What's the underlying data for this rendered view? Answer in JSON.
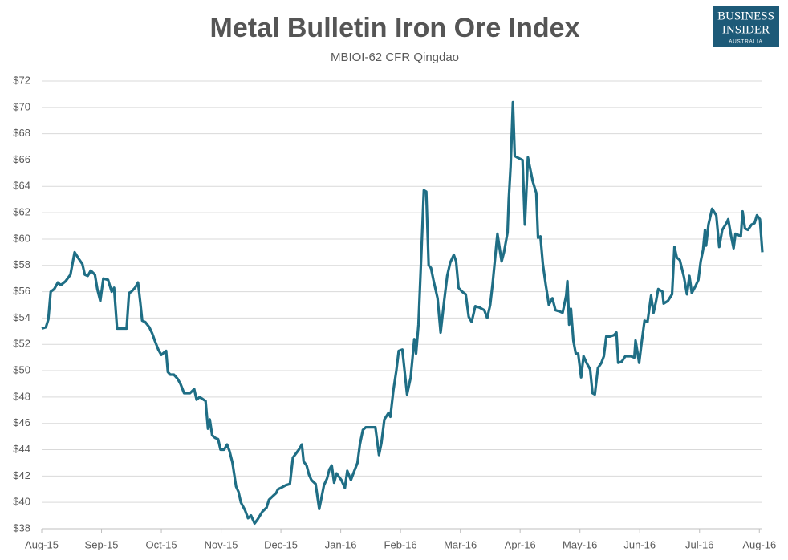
{
  "logo": {
    "line1": "BUSINESS",
    "line2": "INSIDER",
    "line3": "AUSTRALIA"
  },
  "chart_data": {
    "type": "line",
    "title": "Metal Bulletin Iron Ore Index",
    "subtitle": "MBIOI-62 CFR Qingdao",
    "color": "#1f6e85",
    "grid": true,
    "xlim": [
      0,
      12.05
    ],
    "ylim": [
      38,
      72
    ],
    "xticks": [
      {
        "value": 0,
        "label": "Aug-15"
      },
      {
        "value": 1,
        "label": "Sep-15"
      },
      {
        "value": 2,
        "label": "Oct-15"
      },
      {
        "value": 3,
        "label": "Nov-15"
      },
      {
        "value": 4,
        "label": "Dec-15"
      },
      {
        "value": 5,
        "label": "Jan-16"
      },
      {
        "value": 6,
        "label": "Feb-16"
      },
      {
        "value": 7,
        "label": "Mar-16"
      },
      {
        "value": 8,
        "label": "Apr-16"
      },
      {
        "value": 9,
        "label": "May-16"
      },
      {
        "value": 10,
        "label": "Jun-16"
      },
      {
        "value": 11,
        "label": "Jul-16"
      },
      {
        "value": 12,
        "label": "Aug-16"
      }
    ],
    "yticks": [
      {
        "value": 38,
        "label": "$38"
      },
      {
        "value": 40,
        "label": "$40"
      },
      {
        "value": 42,
        "label": "$42"
      },
      {
        "value": 44,
        "label": "$44"
      },
      {
        "value": 46,
        "label": "$46"
      },
      {
        "value": 48,
        "label": "$48"
      },
      {
        "value": 50,
        "label": "$50"
      },
      {
        "value": 52,
        "label": "$52"
      },
      {
        "value": 54,
        "label": "$54"
      },
      {
        "value": 56,
        "label": "$56"
      },
      {
        "value": 58,
        "label": "$58"
      },
      {
        "value": 60,
        "label": "$60"
      },
      {
        "value": 62,
        "label": "$62"
      },
      {
        "value": 64,
        "label": "$64"
      },
      {
        "value": 66,
        "label": "$66"
      },
      {
        "value": 68,
        "label": "$68"
      },
      {
        "value": 70,
        "label": "$70"
      },
      {
        "value": 72,
        "label": "$72"
      }
    ],
    "x": [
      0,
      0.07,
      0.11,
      0.15,
      0.21,
      0.27,
      0.32,
      0.4,
      0.48,
      0.55,
      0.62,
      0.68,
      0.72,
      0.77,
      0.82,
      0.89,
      0.93,
      0.98,
      1.03,
      1.11,
      1.17,
      1.21,
      1.26,
      1.32,
      1.42,
      1.46,
      1.5,
      1.56,
      1.61,
      1.65,
      1.68,
      1.73,
      1.8,
      1.85,
      1.89,
      1.95,
      2.0,
      2.08,
      2.11,
      2.15,
      2.21,
      2.27,
      2.32,
      2.38,
      2.48,
      2.55,
      2.59,
      2.64,
      2.74,
      2.78,
      2.81,
      2.85,
      2.9,
      2.95,
      2.99,
      3.05,
      3.1,
      3.14,
      3.19,
      3.25,
      3.29,
      3.33,
      3.4,
      3.45,
      3.5,
      3.56,
      3.61,
      3.69,
      3.76,
      3.8,
      3.87,
      3.92,
      3.95,
      4.0,
      4.08,
      4.15,
      4.2,
      4.3,
      4.35,
      4.38,
      4.43,
      4.47,
      4.51,
      4.58,
      4.64,
      4.68,
      4.72,
      4.77,
      4.81,
      4.85,
      4.89,
      4.93,
      5.01,
      5.07,
      5.11,
      5.17,
      5.22,
      5.28,
      5.32,
      5.37,
      5.42,
      5.48,
      5.58,
      5.64,
      5.68,
      5.73,
      5.8,
      5.83,
      5.88,
      5.93,
      5.97,
      6.03,
      6.11,
      6.17,
      6.23,
      6.26,
      6.3,
      6.34,
      6.39,
      6.43,
      6.47,
      6.51,
      6.55,
      6.62,
      6.67,
      6.73,
      6.78,
      6.83,
      6.89,
      6.93,
      6.97,
      7.03,
      7.09,
      7.14,
      7.19,
      7.25,
      7.32,
      7.4,
      7.45,
      7.5,
      7.54,
      7.62,
      7.69,
      7.73,
      7.79,
      7.81,
      7.84,
      7.88,
      7.91,
      7.95,
      8.04,
      8.08,
      8.13,
      8.21,
      8.27,
      8.3,
      8.34,
      8.38,
      8.43,
      8.48,
      8.54,
      8.59,
      8.66,
      8.71,
      8.77,
      8.79,
      8.82,
      8.85,
      8.89,
      8.93,
      8.97,
      9.02,
      9.06,
      9.11,
      9.17,
      9.21,
      9.25,
      9.3,
      9.36,
      9.4,
      9.44,
      9.5,
      9.57,
      9.61,
      9.64,
      9.7,
      9.76,
      9.85,
      9.91,
      9.93,
      9.99,
      10.03,
      10.08,
      10.13,
      10.19,
      10.23,
      10.27,
      10.31,
      10.38,
      10.4,
      10.47,
      10.54,
      10.58,
      10.62,
      10.67,
      10.74,
      10.79,
      10.83,
      10.87,
      10.93,
      10.98,
      11.02,
      11.06,
      11.09,
      11.11,
      11.15,
      11.21,
      11.28,
      11.33,
      11.38,
      11.45,
      11.48,
      11.53,
      11.57,
      11.6,
      11.65,
      11.69,
      11.72,
      11.76,
      11.81,
      11.87,
      11.92,
      11.96,
      12.01,
      12.05
    ],
    "values": [
      53.2,
      53.3,
      53.9,
      56.0,
      56.2,
      56.7,
      56.5,
      56.8,
      57.3,
      59.0,
      58.5,
      58.1,
      57.3,
      57.2,
      57.6,
      57.3,
      56.2,
      55.3,
      57.0,
      56.9,
      56.0,
      56.3,
      53.2,
      53.2,
      53.2,
      55.9,
      56.0,
      56.3,
      56.7,
      55.1,
      53.8,
      53.7,
      53.3,
      52.8,
      52.3,
      51.6,
      51.2,
      51.5,
      49.9,
      49.7,
      49.7,
      49.4,
      49.0,
      48.3,
      48.3,
      48.6,
      47.8,
      48.0,
      47.7,
      45.6,
      46.3,
      45.1,
      44.9,
      44.8,
      44.0,
      44.0,
      44.4,
      43.9,
      43.0,
      41.2,
      40.8,
      40.0,
      39.4,
      38.8,
      39.0,
      38.4,
      38.7,
      39.3,
      39.6,
      40.2,
      40.5,
      40.7,
      41.0,
      41.1,
      41.3,
      41.4,
      43.4,
      44.0,
      44.4,
      43.1,
      42.8,
      42.1,
      41.7,
      41.4,
      39.5,
      40.4,
      41.3,
      41.8,
      42.5,
      42.8,
      41.5,
      42.2,
      41.7,
      41.1,
      42.4,
      41.7,
      42.3,
      43.0,
      44.4,
      45.5,
      45.7,
      45.7,
      45.7,
      43.6,
      44.5,
      46.3,
      46.8,
      46.5,
      48.5,
      50.0,
      51.5,
      51.6,
      48.2,
      49.5,
      52.4,
      51.3,
      53.5,
      58.0,
      63.7,
      63.6,
      58.0,
      57.8,
      56.9,
      55.5,
      52.9,
      55.3,
      57.2,
      58.2,
      58.8,
      58.3,
      56.3,
      56.0,
      55.8,
      54.1,
      53.7,
      54.9,
      54.8,
      54.6,
      54.0,
      55.0,
      56.6,
      60.4,
      58.3,
      59.0,
      60.5,
      63.0,
      65.5,
      70.4,
      66.3,
      66.2,
      66.0,
      61.1,
      66.2,
      64.4,
      63.5,
      60.1,
      60.2,
      58.1,
      56.5,
      55.0,
      55.5,
      54.6,
      54.5,
      54.4,
      55.7,
      56.8,
      53.5,
      54.7,
      52.3,
      51.3,
      51.3,
      49.5,
      51.1,
      50.6,
      50.1,
      48.3,
      48.2,
      50.2,
      50.6,
      51.1,
      52.6,
      52.6,
      52.7,
      52.9,
      50.6,
      50.7,
      51.1,
      51.1,
      51.0,
      52.3,
      50.6,
      52.1,
      53.8,
      53.7,
      55.7,
      54.4,
      55.2,
      56.2,
      56.0,
      55.1,
      55.3,
      55.8,
      59.4,
      58.6,
      58.4,
      57.1,
      55.8,
      57.2,
      55.9,
      56.4,
      56.9,
      58.3,
      59.2,
      60.7,
      59.5,
      61.1,
      62.3,
      61.8,
      59.4,
      60.7,
      61.2,
      61.5,
      60.2,
      59.3,
      60.4,
      60.3,
      60.2,
      62.1,
      60.8,
      60.7,
      61.1,
      61.2,
      61.8,
      61.5,
      59.0
    ]
  }
}
